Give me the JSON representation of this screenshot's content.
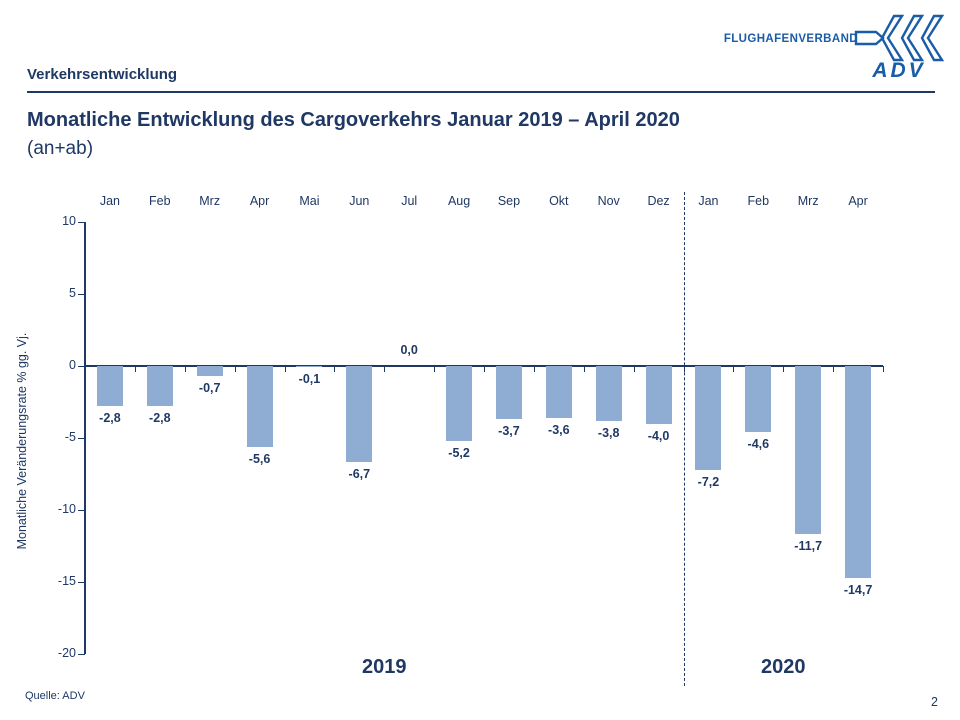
{
  "slide": {
    "kicker": "Verkehrsentwicklung",
    "title": "Monatliche Entwicklung des Cargoverkehrs Januar 2019 – April 2020",
    "subtitle": "(an+ab)",
    "source": "Quelle: ADV",
    "page_number": "2"
  },
  "logo": {
    "org": "FLUGHAFENVERBAND",
    "acronym": "ADV",
    "icon": "triple-chevron-left-arrow-icon",
    "color": "#1A5CA8"
  },
  "chart_data": {
    "type": "bar",
    "categories": [
      "Jan",
      "Feb",
      "Mrz",
      "Apr",
      "Mai",
      "Jun",
      "Jul",
      "Aug",
      "Sep",
      "Okt",
      "Nov",
      "Dez",
      "Jan",
      "Feb",
      "Mrz",
      "Apr"
    ],
    "values": [
      -2.8,
      -2.8,
      -0.7,
      -5.6,
      -0.1,
      -6.7,
      0.0,
      -5.2,
      -3.7,
      -3.6,
      -3.8,
      -4.0,
      -7.2,
      -4.6,
      -11.7,
      -14.7
    ],
    "value_labels": [
      "-2,8",
      "-2,8",
      "-0,7",
      "-5,6",
      "-0,1",
      "-6,7",
      "0,0",
      "-5,2",
      "-3,7",
      "-3,6",
      "-3,8",
      "-4,0",
      "-7,2",
      "-4,6",
      "-11,7",
      "-14,7"
    ],
    "title": "",
    "xlabel": "",
    "ylabel": "Monatliche Veränderungsrate % gg. Vj.",
    "ylim": [
      -20,
      10
    ],
    "yticks": [
      10,
      5,
      0,
      -5,
      -10,
      -15,
      -20
    ],
    "ytick_labels": [
      "10",
      "5",
      "0",
      "-5",
      "-10",
      "-15",
      "-20"
    ],
    "year_groups": [
      {
        "label": "2019",
        "count": 12
      },
      {
        "label": "2020",
        "count": 4
      }
    ],
    "separator_after_index": 11,
    "bar_color": "#8FACD2",
    "axis_color": "#1F3864",
    "grid": false,
    "legend": false
  }
}
